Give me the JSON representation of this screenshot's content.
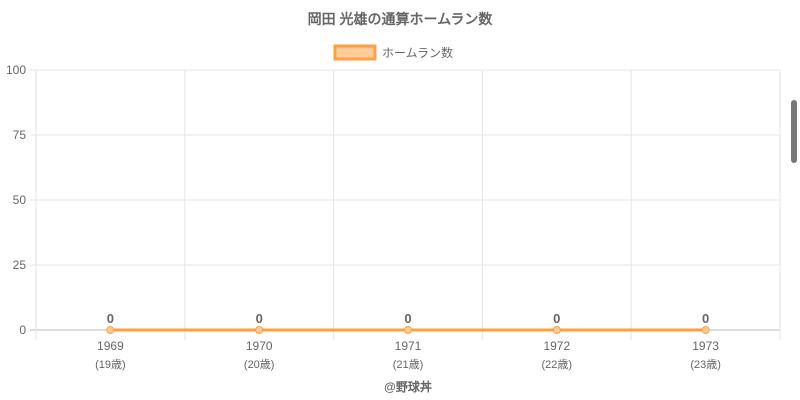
{
  "chart_data": {
    "type": "line",
    "title": "岡田 光雄の通算ホームラン数",
    "categories": [
      "1969",
      "1970",
      "1971",
      "1972",
      "1973"
    ],
    "sublabels": [
      "(19歳)",
      "(20歳)",
      "(21歳)",
      "(22歳)",
      "(23歳)"
    ],
    "series": [
      {
        "name": "ホームラン数",
        "values": [
          0,
          0,
          0,
          0,
          0
        ],
        "color": "#ff9f40",
        "fill": "#ffcc99"
      }
    ],
    "ylim": [
      0,
      100
    ],
    "yticks": [
      0,
      25,
      50,
      75,
      100
    ],
    "grid": true,
    "legend": "top",
    "data_labels": true
  },
  "credit": "@野球丼"
}
